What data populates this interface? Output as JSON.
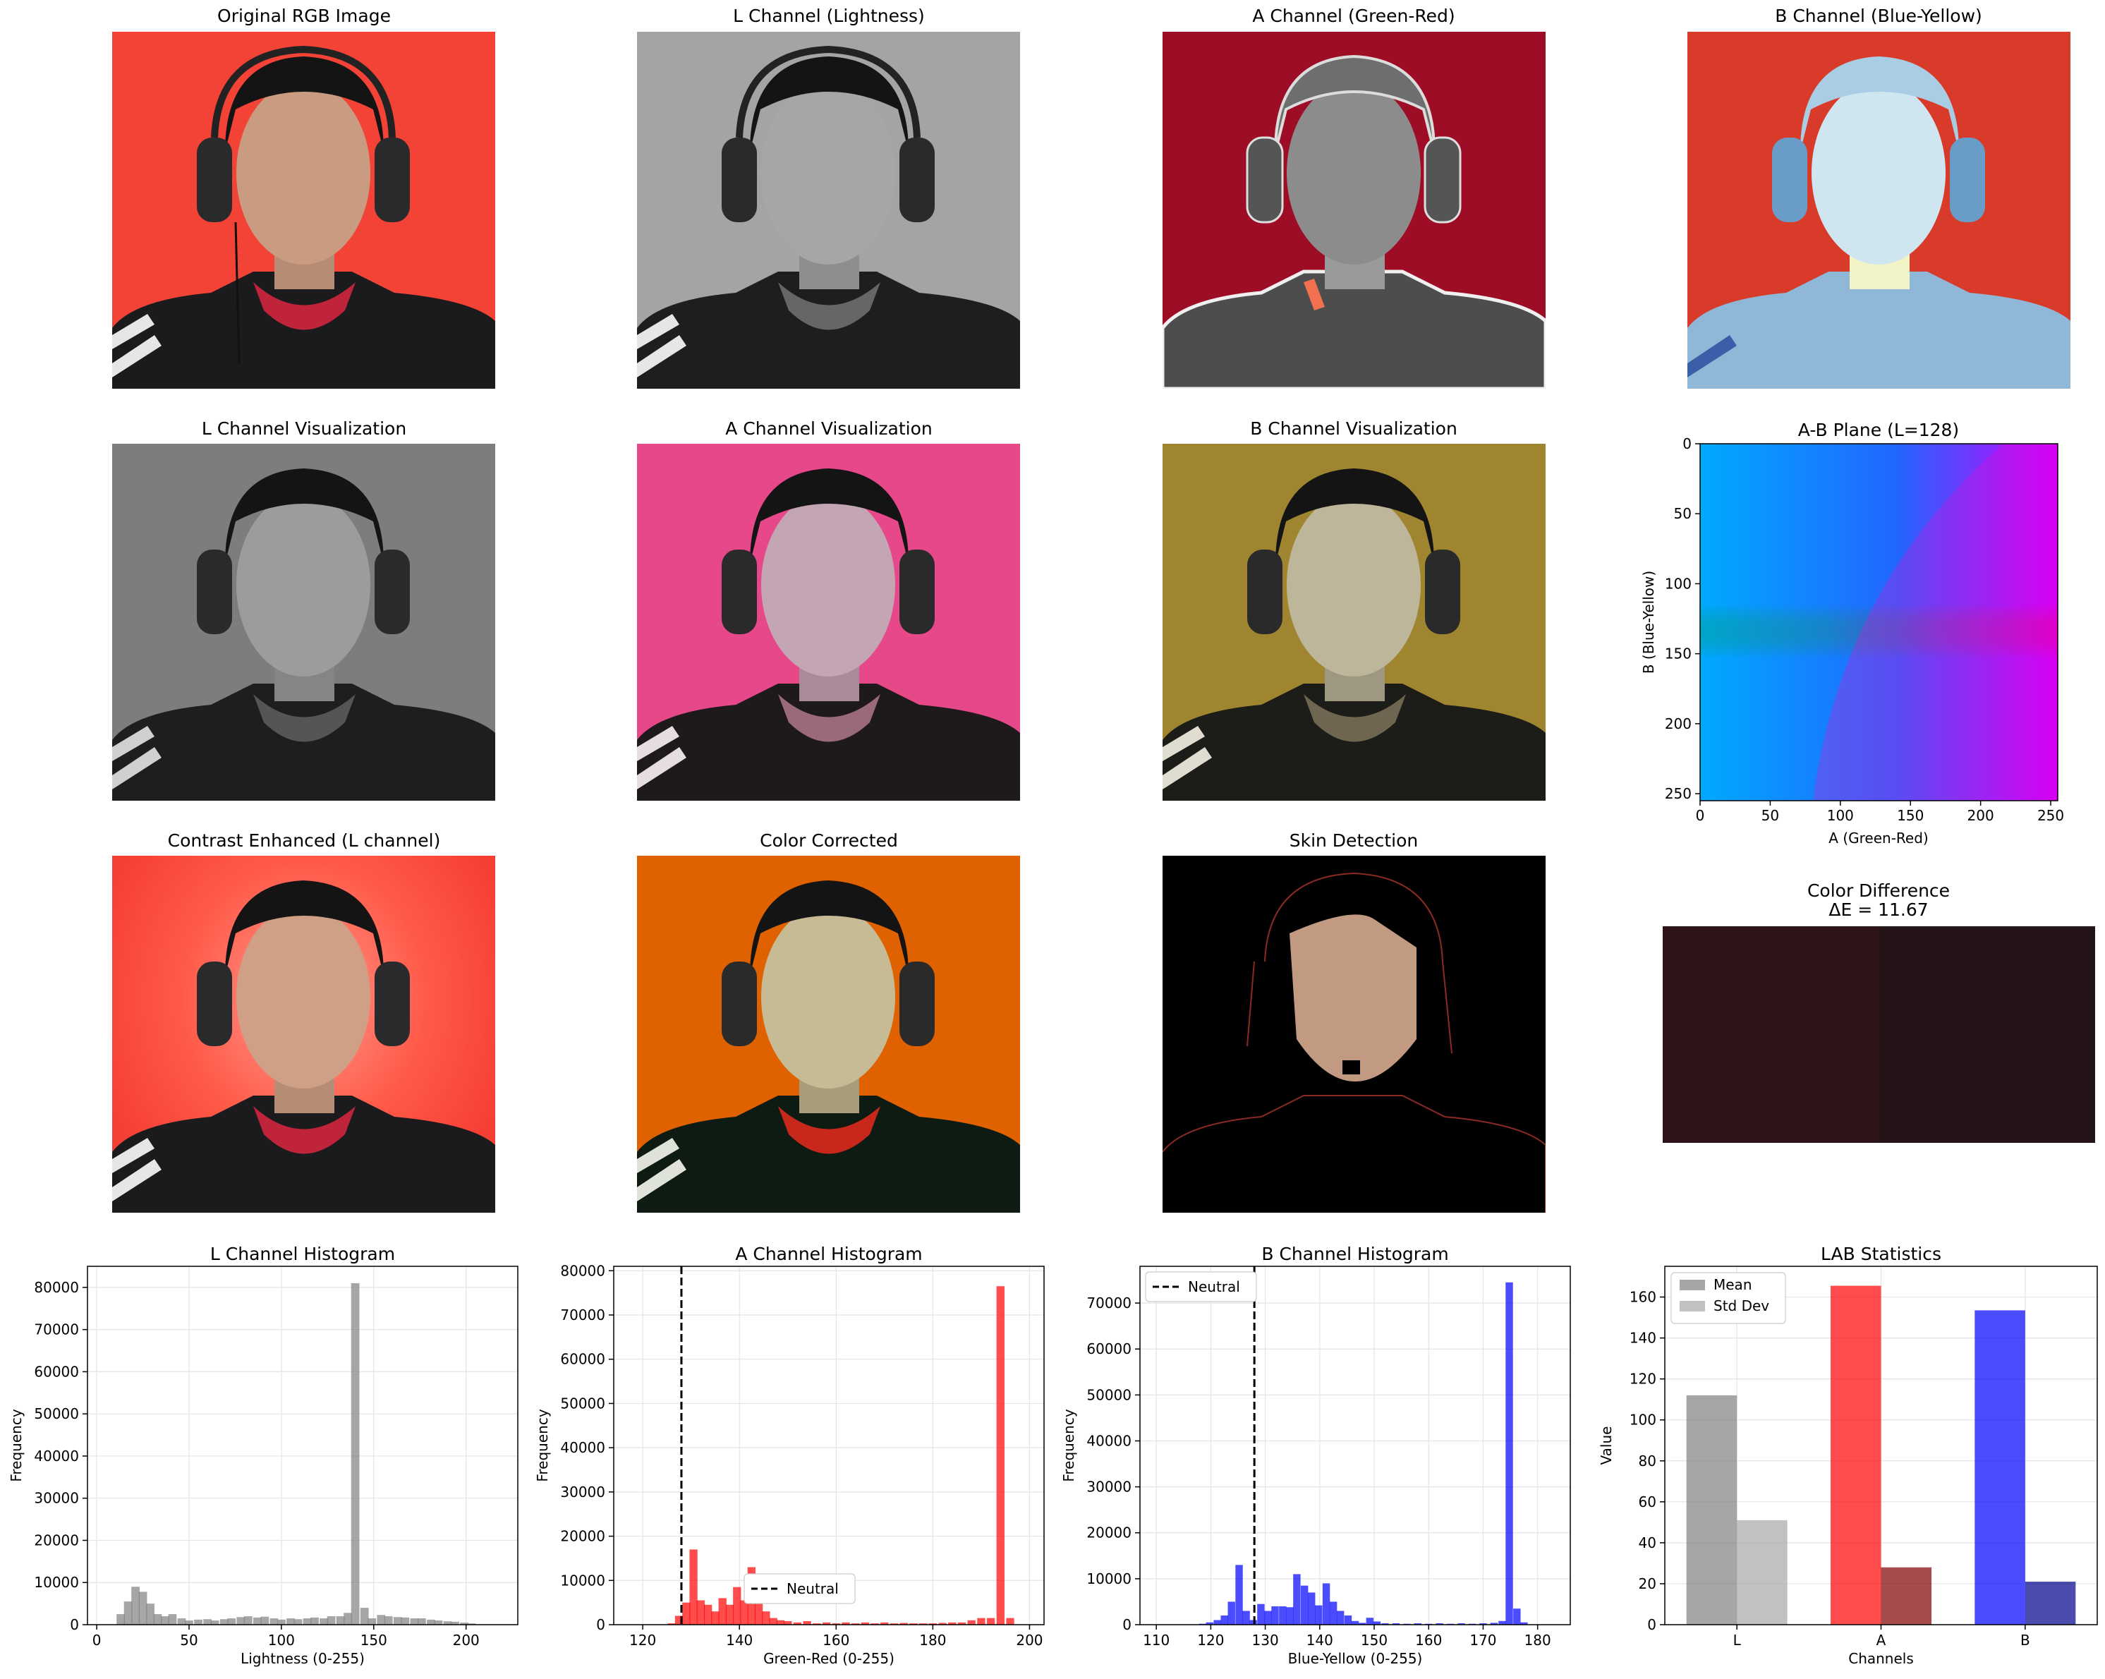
{
  "image_panels": {
    "original_rgb": "Original RGB Image",
    "l_channel": "L Channel (Lightness)",
    "a_channel": "A Channel (Green-Red)",
    "b_channel": "B Channel (Blue-Yellow)",
    "l_vis": "L Channel Visualization",
    "a_vis": "A Channel Visualization",
    "b_vis": "B Channel Visualization",
    "contrast": "Contrast Enhanced (L channel)",
    "color_corrected": "Color Corrected",
    "skin": "Skin Detection"
  },
  "color_difference": {
    "title_line1": "Color Difference",
    "title_line2": "ΔE = 11.67",
    "left_color": "#2e1418",
    "right_color": "#241417"
  },
  "chart_data": [
    {
      "type": "heatmap",
      "title": "A-B Plane (L=128)",
      "xlabel": "A (Green-Red)",
      "ylabel": "B (Blue-Yellow)",
      "xticks": [
        "0",
        "50",
        "100",
        "150",
        "200",
        "250"
      ],
      "yticks": [
        "0",
        "50",
        "100",
        "150",
        "200",
        "250"
      ],
      "xlim": [
        0,
        255
      ],
      "ylim": [
        0,
        255
      ]
    },
    {
      "type": "bar",
      "title": "L Channel Histogram",
      "xlabel": "Lightness (0-255)",
      "ylabel": "Frequency",
      "xlim": [
        -5,
        228
      ],
      "ylim": [
        0,
        85000
      ],
      "xticks": [
        "0",
        "50",
        "100",
        "150",
        "200"
      ],
      "yticks": [
        "0",
        "10000",
        "20000",
        "30000",
        "40000",
        "50000",
        "60000",
        "70000",
        "80000"
      ],
      "color": "#808080",
      "bin_width": 4.5,
      "bins": [
        [
          13,
          2500
        ],
        [
          17,
          5500
        ],
        [
          21,
          9000
        ],
        [
          25,
          7800
        ],
        [
          29,
          5000
        ],
        [
          33,
          2500
        ],
        [
          37,
          2000
        ],
        [
          41,
          2500
        ],
        [
          46,
          1500
        ],
        [
          50,
          1000
        ],
        [
          55,
          1200
        ],
        [
          60,
          1300
        ],
        [
          64,
          1000
        ],
        [
          69,
          1300
        ],
        [
          73,
          1500
        ],
        [
          78,
          1800
        ],
        [
          82,
          2000
        ],
        [
          87,
          1700
        ],
        [
          91,
          1900
        ],
        [
          96,
          1500
        ],
        [
          100,
          1200
        ],
        [
          105,
          1500
        ],
        [
          109,
          1300
        ],
        [
          114,
          1500
        ],
        [
          118,
          1700
        ],
        [
          123,
          1500
        ],
        [
          127,
          2000
        ],
        [
          132,
          2000
        ],
        [
          136,
          2800
        ],
        [
          140,
          81000
        ],
        [
          145,
          4000
        ],
        [
          149,
          1500
        ],
        [
          154,
          2300
        ],
        [
          158,
          2000
        ],
        [
          163,
          1800
        ],
        [
          167,
          1700
        ],
        [
          172,
          1500
        ],
        [
          176,
          1500
        ],
        [
          181,
          1200
        ],
        [
          185,
          1000
        ],
        [
          190,
          800
        ],
        [
          194,
          700
        ],
        [
          199,
          500
        ],
        [
          203,
          300
        ]
      ]
    },
    {
      "type": "bar",
      "title": "A Channel Histogram",
      "xlabel": "Green-Red (0-255)",
      "ylabel": "Frequency",
      "xlim": [
        114,
        203
      ],
      "ylim": [
        0,
        81000
      ],
      "xticks": [
        "120",
        "140",
        "160",
        "180",
        "200"
      ],
      "yticks": [
        "0",
        "10000",
        "20000",
        "30000",
        "40000",
        "50000",
        "60000",
        "70000",
        "80000"
      ],
      "color": "#ff0000",
      "neutral": 128,
      "legend": "Neutral",
      "bin_width": 1.65,
      "bins": [
        [
          126,
          300
        ],
        [
          127.5,
          2000
        ],
        [
          129,
          5000
        ],
        [
          130.5,
          17000
        ],
        [
          132,
          5500
        ],
        [
          133.5,
          4500
        ],
        [
          135,
          3000
        ],
        [
          136.5,
          6000
        ],
        [
          138,
          4500
        ],
        [
          139.5,
          8500
        ],
        [
          141,
          5500
        ],
        [
          142.5,
          13000
        ],
        [
          144,
          11000
        ],
        [
          145.5,
          3000
        ],
        [
          147,
          1500
        ],
        [
          148.5,
          1000
        ],
        [
          150,
          800
        ],
        [
          152,
          500
        ],
        [
          154,
          800
        ],
        [
          156,
          300
        ],
        [
          158,
          500
        ],
        [
          160,
          300
        ],
        [
          162,
          500
        ],
        [
          164,
          300
        ],
        [
          166,
          500
        ],
        [
          168,
          300
        ],
        [
          170,
          500
        ],
        [
          172,
          300
        ],
        [
          174,
          400
        ],
        [
          176,
          300
        ],
        [
          178,
          300
        ],
        [
          180,
          300
        ],
        [
          182,
          400
        ],
        [
          184,
          500
        ],
        [
          186,
          500
        ],
        [
          188,
          1000
        ],
        [
          190,
          1500
        ],
        [
          192,
          1500
        ],
        [
          194,
          76500
        ],
        [
          196,
          1500
        ]
      ]
    },
    {
      "type": "bar",
      "title": "B Channel Histogram",
      "xlabel": "Blue-Yellow (0-255)",
      "ylabel": "Frequency",
      "xlim": [
        107,
        186
      ],
      "ylim": [
        0,
        78000
      ],
      "xticks": [
        "110",
        "120",
        "130",
        "140",
        "150",
        "160",
        "170",
        "180"
      ],
      "yticks": [
        "0",
        "10000",
        "20000",
        "30000",
        "40000",
        "50000",
        "60000",
        "70000"
      ],
      "color": "#0000ff",
      "neutral": 128,
      "legend": "Neutral",
      "bin_width": 1.35,
      "bins": [
        [
          118.5,
          200
        ],
        [
          119.8,
          500
        ],
        [
          121.2,
          1000
        ],
        [
          122.5,
          2000
        ],
        [
          123.8,
          5000
        ],
        [
          125.2,
          13000
        ],
        [
          126.5,
          3000
        ],
        [
          127.8,
          1000
        ],
        [
          129.2,
          4500
        ],
        [
          130.5,
          3000
        ],
        [
          131.8,
          4000
        ],
        [
          133.2,
          4000
        ],
        [
          134.5,
          3800
        ],
        [
          135.8,
          11000
        ],
        [
          137.2,
          8500
        ],
        [
          138.5,
          7000
        ],
        [
          139.8,
          4200
        ],
        [
          141.2,
          9000
        ],
        [
          142.5,
          5000
        ],
        [
          143.8,
          3000
        ],
        [
          145.2,
          2000
        ],
        [
          146.5,
          800
        ],
        [
          147.8,
          400
        ],
        [
          149.2,
          1500
        ],
        [
          150.5,
          700
        ],
        [
          152,
          300
        ],
        [
          154,
          300
        ],
        [
          156,
          200
        ],
        [
          158,
          300
        ],
        [
          160,
          200
        ],
        [
          162,
          300
        ],
        [
          164,
          200
        ],
        [
          166,
          300
        ],
        [
          168,
          200
        ],
        [
          170,
          300
        ],
        [
          172,
          400
        ],
        [
          173.5,
          800
        ],
        [
          174.8,
          74500
        ],
        [
          176.2,
          3500
        ],
        [
          177.5,
          500
        ]
      ]
    },
    {
      "type": "bar",
      "title": "LAB Statistics",
      "xlabel": "Channels",
      "ylabel": "Value",
      "categories": [
        "L",
        "A",
        "B"
      ],
      "ylim": [
        0,
        175
      ],
      "yticks": [
        "0",
        "20",
        "40",
        "60",
        "80",
        "100",
        "120",
        "140",
        "160"
      ],
      "series": [
        {
          "name": "Mean",
          "values": [
            112,
            165.5,
            153.5
          ],
          "colors": [
            "#808080",
            "#ff0000",
            "#0000ff"
          ]
        },
        {
          "name": "Std Dev",
          "values": [
            51,
            28,
            21
          ],
          "colors": [
            "#a6a6a6",
            "#800000",
            "#00008b"
          ]
        }
      ],
      "legend_placement": "top-left",
      "grid": true
    }
  ]
}
